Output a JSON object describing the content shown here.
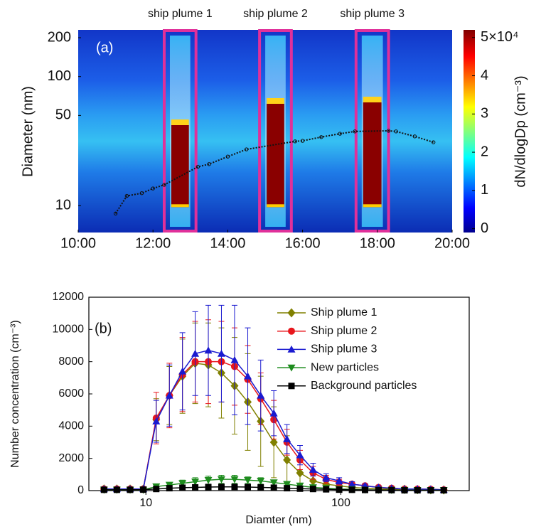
{
  "chart_data": [
    {
      "type": "heatmap",
      "annotation": "(a)",
      "ylabel": "Diameter (nm)",
      "colorbar_label": "dN/dlogDp (cm⁻³)",
      "xlim": [
        10,
        20
      ],
      "xticks": [
        {
          "value": 10,
          "label": "10:00"
        },
        {
          "value": 12,
          "label": "12:00"
        },
        {
          "value": 14,
          "label": "14:00"
        },
        {
          "value": 16,
          "label": "16:00"
        },
        {
          "value": 18,
          "label": "18:00"
        },
        {
          "value": 20,
          "label": "20:00"
        }
      ],
      "ylog": true,
      "ylim": [
        6.2,
        230
      ],
      "yticks": [
        10,
        50,
        100,
        200
      ],
      "clim": [
        -0.1,
        5.2
      ],
      "cticks": [
        0,
        1,
        2,
        3,
        4,
        {
          "value": 5,
          "label": "5×10⁴"
        }
      ],
      "plume_color": "#e0309a",
      "plumes": [
        {
          "label": "ship plume 1",
          "start": 12.3,
          "end": 13.15
        },
        {
          "label": "ship plume 2",
          "start": 14.85,
          "end": 15.7
        },
        {
          "label": "ship plume 3",
          "start": 17.43,
          "end": 18.3
        }
      ],
      "mode_line": {
        "color": "#111111",
        "x": [
          11.0,
          11.3,
          11.7,
          12.0,
          12.3,
          13.2,
          13.5,
          14.0,
          14.5,
          15.8,
          16.0,
          16.5,
          17.0,
          17.4,
          18.3,
          18.5,
          19.0,
          19.5
        ],
        "values": [
          8.7,
          11.9,
          12.5,
          13.6,
          14.5,
          20,
          21,
          24,
          27.3,
          31.5,
          31.8,
          34,
          36.1,
          37.6,
          38,
          37.6,
          34.4,
          31
        ]
      }
    },
    {
      "type": "line",
      "annotation": "(b)",
      "xlabel": "Diamter (nm)",
      "ylabel": "Number concentration (cm⁻³)",
      "xlog": true,
      "xlim": [
        5.1,
        455
      ],
      "xticks": [
        10,
        100
      ],
      "ylim": [
        0,
        12000
      ],
      "yticks": [
        0,
        2000,
        4000,
        6000,
        8000,
        10000,
        12000
      ],
      "legend": "upper right",
      "x": [
        6.1,
        7.1,
        8.3,
        9.7,
        11.3,
        13.2,
        15.4,
        17.9,
        20.9,
        24.4,
        28.5,
        33.3,
        38.8,
        45.3,
        52.9,
        61.7,
        72,
        84,
        98,
        114,
        133,
        156,
        182,
        212,
        247,
        289,
        337
      ],
      "series": [
        {
          "name": "Ship plume 1",
          "color": "#808000",
          "marker": "diamond",
          "values": [
            100,
            100,
            100,
            100,
            4400,
            5900,
            7100,
            7900,
            7800,
            7300,
            6500,
            5500,
            4300,
            3000,
            1900,
            1100,
            600,
            400,
            300,
            200,
            150,
            100,
            100,
            80,
            60,
            50,
            40
          ],
          "errors": [
            0,
            0,
            0,
            0,
            1300,
            1800,
            2300,
            2500,
            2600,
            2800,
            3000,
            3000,
            2800,
            2200,
            1500,
            900,
            500,
            300,
            200,
            150,
            100,
            80,
            60,
            50,
            40,
            30,
            20
          ]
        },
        {
          "name": "Ship plume 2",
          "color": "#e8161c",
          "marker": "circle",
          "values": [
            100,
            100,
            100,
            100,
            4500,
            5900,
            7200,
            8000,
            8000,
            8000,
            7700,
            6900,
            5700,
            4400,
            3000,
            1900,
            1100,
            700,
            500,
            400,
            300,
            200,
            150,
            100,
            100,
            80,
            50
          ],
          "errors": [
            0,
            0,
            0,
            0,
            1600,
            2000,
            2300,
            2500,
            2600,
            2500,
            2400,
            2100,
            1600,
            1200,
            800,
            600,
            400,
            250,
            200,
            150,
            100,
            80,
            60,
            50,
            40,
            30,
            20
          ]
        },
        {
          "name": "Ship plume 3",
          "color": "#1a1ad0",
          "marker": "triangle-up",
          "values": [
            100,
            100,
            100,
            100,
            4300,
            5900,
            7400,
            8500,
            8700,
            8500,
            8100,
            7100,
            5900,
            4800,
            3200,
            2200,
            1300,
            800,
            600,
            400,
            300,
            200,
            150,
            100,
            100,
            80,
            50
          ],
          "errors": [
            0,
            0,
            0,
            0,
            1300,
            1900,
            2400,
            2600,
            2800,
            3000,
            3400,
            3000,
            2200,
            1400,
            900,
            600,
            400,
            250,
            200,
            150,
            100,
            80,
            60,
            50,
            40,
            30,
            20
          ]
        },
        {
          "name": "New particles",
          "color": "#1e8c1e",
          "marker": "triangle-down",
          "values": [
            50,
            50,
            50,
            50,
            250,
            350,
            450,
            550,
            650,
            700,
            700,
            650,
            600,
            500,
            400,
            300,
            200,
            150,
            100,
            80,
            50,
            40,
            30,
            30,
            20,
            20,
            20
          ],
          "errors": [
            20,
            20,
            20,
            20,
            100,
            150,
            200,
            250,
            250,
            250,
            250,
            200,
            200,
            150,
            120,
            100,
            80,
            60,
            40,
            30,
            20,
            20,
            10,
            10,
            10,
            10,
            10
          ]
        },
        {
          "name": "Background particles",
          "color": "#000000",
          "marker": "square",
          "values": [
            50,
            50,
            50,
            60,
            100,
            150,
            180,
            200,
            220,
            230,
            230,
            220,
            200,
            180,
            150,
            120,
            100,
            80,
            60,
            50,
            40,
            30,
            30,
            20,
            20,
            20,
            20
          ],
          "errors": [
            10,
            10,
            10,
            10,
            30,
            40,
            50,
            50,
            60,
            60,
            60,
            60,
            50,
            50,
            40,
            30,
            30,
            20,
            20,
            10,
            10,
            10,
            10,
            10,
            10,
            10,
            10
          ]
        }
      ]
    }
  ]
}
